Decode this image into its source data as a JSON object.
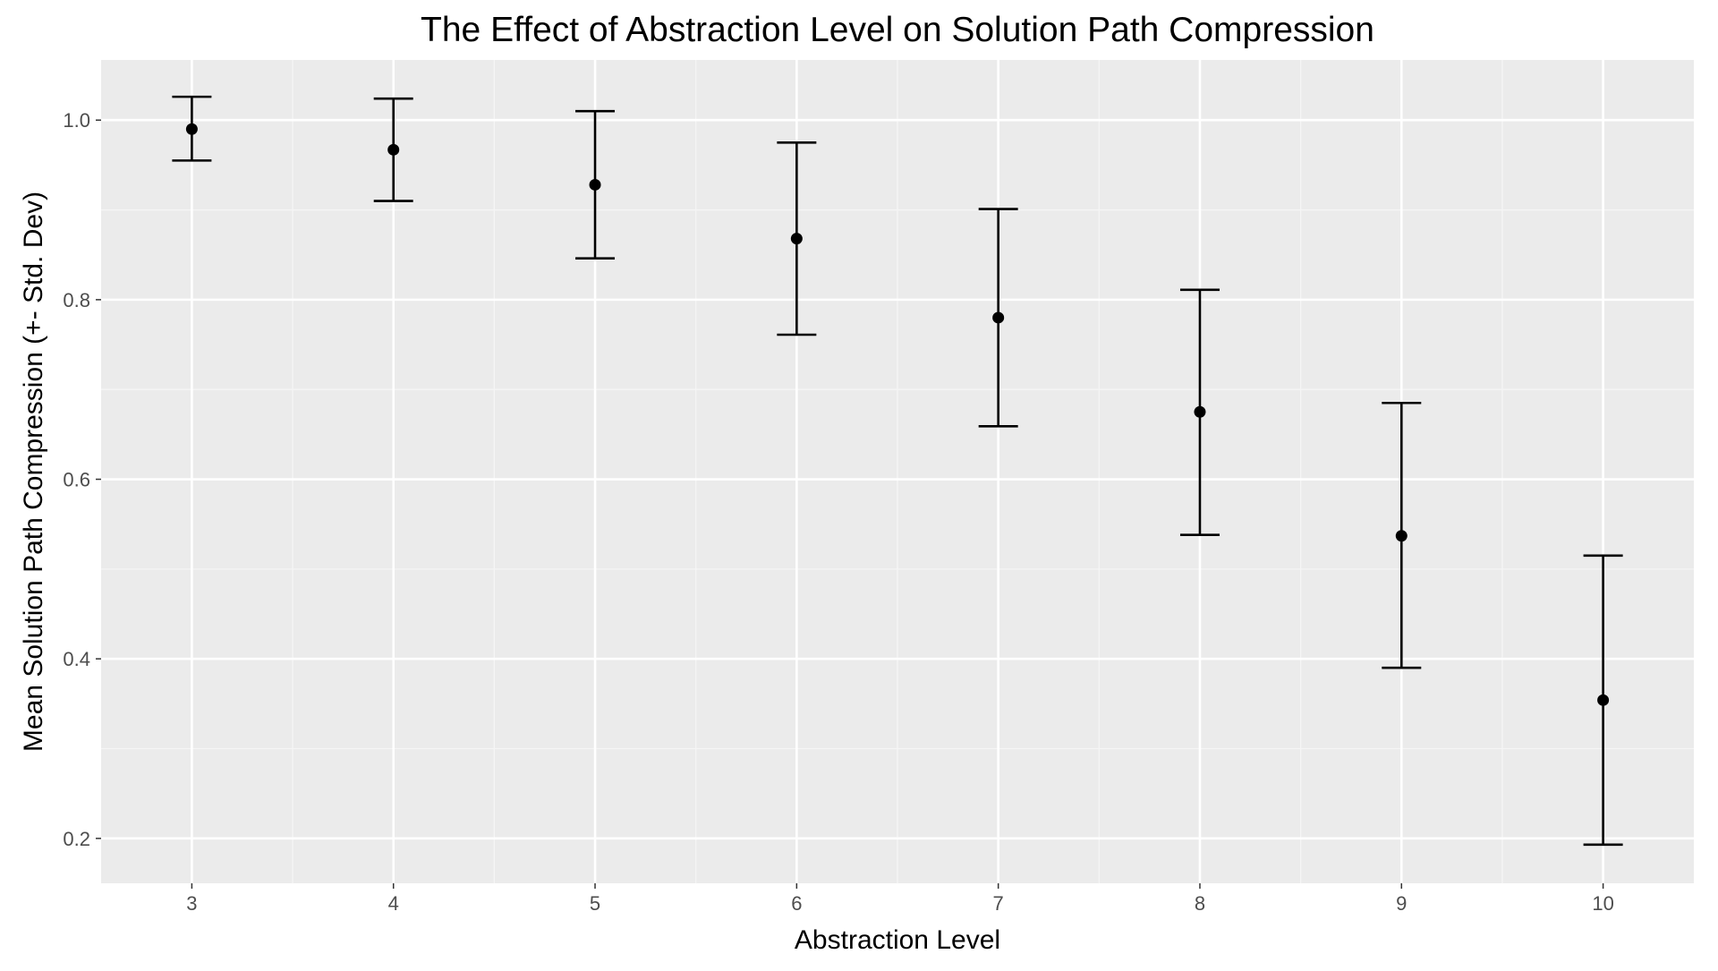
{
  "chart_data": {
    "type": "scatter",
    "title": "The Effect of Abstraction Level on Solution Path Compression",
    "xlabel": "Abstraction Level",
    "ylabel": "Mean Solution Path Compression (+- Std. Dev)",
    "x": [
      3,
      4,
      5,
      6,
      7,
      8,
      9,
      10
    ],
    "y": [
      0.99,
      0.967,
      0.928,
      0.868,
      0.78,
      0.675,
      0.537,
      0.354
    ],
    "error_upper": [
      1.026,
      1.024,
      1.01,
      0.975,
      0.901,
      0.811,
      0.685,
      0.515
    ],
    "error_lower": [
      0.955,
      0.91,
      0.846,
      0.761,
      0.659,
      0.538,
      0.39,
      0.193
    ],
    "xlim": [
      2.55,
      10.45
    ],
    "ylim": [
      0.15,
      1.067
    ],
    "x_ticks": [
      "3",
      "4",
      "5",
      "6",
      "7",
      "8",
      "9",
      "10"
    ],
    "y_ticks": [
      0.2,
      0.4,
      0.6,
      0.8,
      1.0
    ],
    "y_tick_labels": [
      "0.2",
      "0.4",
      "0.6",
      "0.8",
      "1.0"
    ],
    "grid": true,
    "legend": "none",
    "colors": {
      "panel_background": "#ebebeb",
      "grid_major": "#ffffff",
      "grid_minor": "#f5f5f5",
      "points": "#000000",
      "error_bars": "#000000",
      "tick_text": "#4d4d4d"
    }
  }
}
